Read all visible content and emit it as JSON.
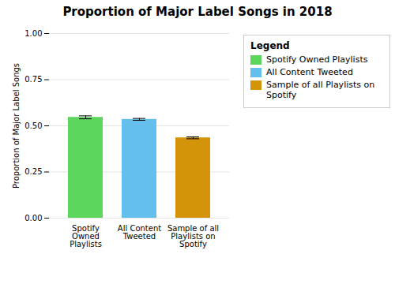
{
  "chart_data": {
    "type": "bar",
    "title": "Proportion of Major Label Songs in 2018",
    "ylabel": "Proportion of Major Label Songs",
    "categories": [
      "Spotify Owned Playlists",
      "All Content Tweeted",
      "Sample of all Playlists on Spotify"
    ],
    "values": [
      0.546,
      0.535,
      0.435
    ],
    "errors": [
      0.008,
      0.005,
      0.005
    ],
    "colors": [
      "#5cd65c",
      "#64bfed",
      "#d4940a"
    ],
    "ylim": [
      0.0,
      1.0
    ],
    "yticks": [
      {
        "value": 0.0,
        "label": "0.00"
      },
      {
        "value": 0.25,
        "label": "0.25"
      },
      {
        "value": 0.5,
        "label": "0.50"
      },
      {
        "value": 0.75,
        "label": "0.75"
      },
      {
        "value": 1.0,
        "label": "1.00"
      }
    ],
    "grid": true,
    "legend": "right",
    "legend_title": "Legend",
    "legend_labels": [
      "Spotify Owned Playlists",
      "All Content Tweeted",
      "Sample of all Playlists on Spotify"
    ]
  }
}
